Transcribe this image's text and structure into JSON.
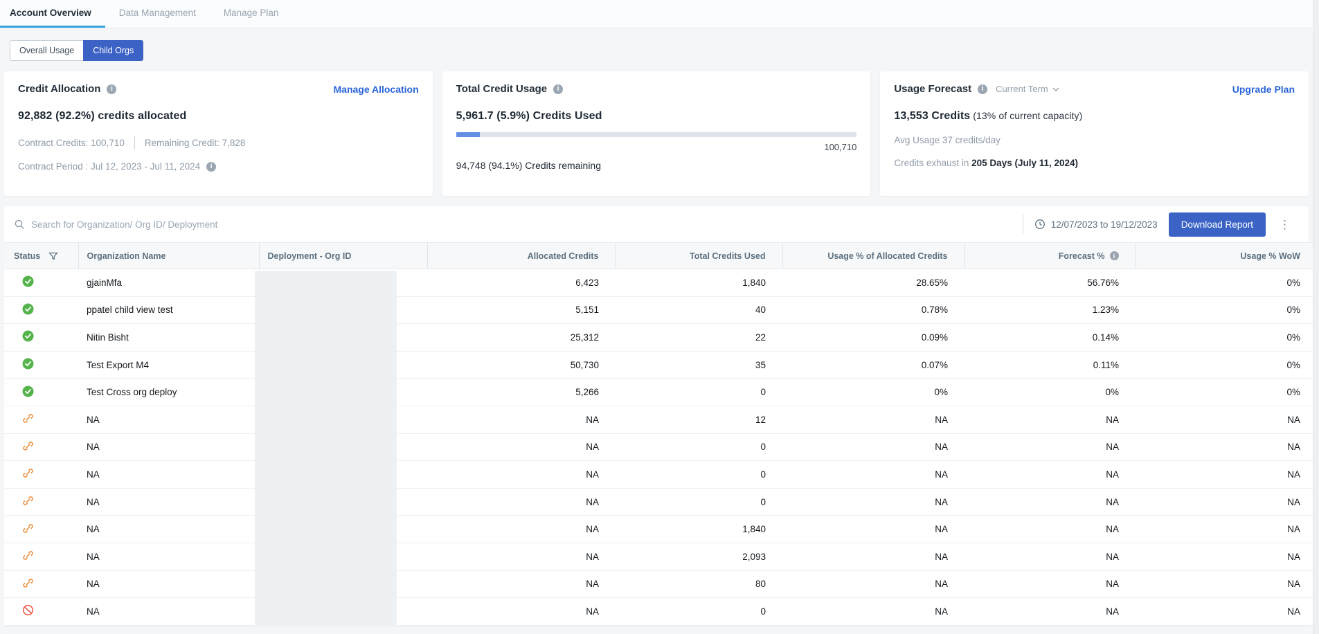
{
  "tabs": [
    {
      "label": "Account Overview",
      "active": true
    },
    {
      "label": "Data Management",
      "active": false
    },
    {
      "label": "Manage Plan",
      "active": false
    }
  ],
  "view_toggle": {
    "options": [
      {
        "label": "Overall Usage",
        "selected": false
      },
      {
        "label": "Child Orgs",
        "selected": true
      }
    ]
  },
  "cards": {
    "credit_allocation": {
      "title": "Credit Allocation",
      "action": "Manage Allocation",
      "headline": "92,882 (92.2%) credits allocated",
      "contract_credits": "Contract Credits: 100,710",
      "remaining_credit": "Remaining Credit: 7,828",
      "contract_period": "Contract Period : Jul 12, 2023 - Jul 11, 2024"
    },
    "total_credit_usage": {
      "title": "Total Credit Usage",
      "headline": "5,961.7 (5.9%) Credits Used",
      "progress_percent": 5.9,
      "bar_total": "100,710",
      "remaining": "94,748 (94.1%) Credits remaining"
    },
    "usage_forecast": {
      "title": "Usage Forecast",
      "term_selector": "Current Term",
      "action": "Upgrade Plan",
      "headline_bold": "13,553 Credits",
      "headline_rest": " (13% of current capacity)",
      "avg_usage": "Avg Usage 37 credits/day",
      "exhaust_prefix": "Credits exhaust in ",
      "exhaust_bold": "205 Days (July 11, 2024)"
    }
  },
  "toolbar": {
    "search_placeholder": "Search for Organization/ Org ID/ Deployment",
    "date_range": "12/07/2023 to 19/12/2023",
    "download_label": "Download Report"
  },
  "table": {
    "columns": [
      "Status",
      "Organization Name",
      "Deployment - Org ID",
      "Allocated Credits",
      "Total Credits Used",
      "Usage % of Allocated Credits",
      "Forecast %",
      "Usage % WoW"
    ],
    "deployment_redacted": true,
    "rows": [
      {
        "status": "active",
        "org": "gjainMfa",
        "deployment": "",
        "allocated": "6,423",
        "used": "1,840",
        "usage_pct": "28.65%",
        "forecast_pct": "56.76%",
        "wow": "0%"
      },
      {
        "status": "active",
        "org": "ppatel child view test",
        "deployment": "",
        "allocated": "5,151",
        "used": "40",
        "usage_pct": "0.78%",
        "forecast_pct": "1.23%",
        "wow": "0%"
      },
      {
        "status": "active",
        "org": "Nitin Bisht",
        "deployment": "",
        "allocated": "25,312",
        "used": "22",
        "usage_pct": "0.09%",
        "forecast_pct": "0.14%",
        "wow": "0%"
      },
      {
        "status": "active",
        "org": "Test Export M4",
        "deployment": "",
        "allocated": "50,730",
        "used": "35",
        "usage_pct": "0.07%",
        "forecast_pct": "0.11%",
        "wow": "0%"
      },
      {
        "status": "active",
        "org": "Test Cross org deploy",
        "deployment": "",
        "allocated": "5,266",
        "used": "0",
        "usage_pct": "0%",
        "forecast_pct": "0%",
        "wow": "0%"
      },
      {
        "status": "unlinked",
        "org": "NA",
        "deployment": "",
        "allocated": "NA",
        "used": "12",
        "usage_pct": "NA",
        "forecast_pct": "NA",
        "wow": "NA"
      },
      {
        "status": "unlinked",
        "org": "NA",
        "deployment": "",
        "allocated": "NA",
        "used": "0",
        "usage_pct": "NA",
        "forecast_pct": "NA",
        "wow": "NA"
      },
      {
        "status": "unlinked",
        "org": "NA",
        "deployment": "",
        "allocated": "NA",
        "used": "0",
        "usage_pct": "NA",
        "forecast_pct": "NA",
        "wow": "NA"
      },
      {
        "status": "unlinked",
        "org": "NA",
        "deployment": "",
        "allocated": "NA",
        "used": "0",
        "usage_pct": "NA",
        "forecast_pct": "NA",
        "wow": "NA"
      },
      {
        "status": "unlinked",
        "org": "NA",
        "deployment": "",
        "allocated": "NA",
        "used": "1,840",
        "usage_pct": "NA",
        "forecast_pct": "NA",
        "wow": "NA"
      },
      {
        "status": "unlinked",
        "org": "NA",
        "deployment": "",
        "allocated": "NA",
        "used": "2,093",
        "usage_pct": "NA",
        "forecast_pct": "NA",
        "wow": "NA"
      },
      {
        "status": "unlinked",
        "org": "NA",
        "deployment": "",
        "allocated": "NA",
        "used": "80",
        "usage_pct": "NA",
        "forecast_pct": "NA",
        "wow": "NA"
      },
      {
        "status": "blocked",
        "org": "NA",
        "deployment": "",
        "allocated": "NA",
        "used": "0",
        "usage_pct": "NA",
        "forecast_pct": "NA",
        "wow": "NA"
      }
    ]
  },
  "colors": {
    "accent_blue": "#3b63c6",
    "link_blue": "#2a65d9",
    "tab_underline": "#38a1e5",
    "success_green": "#55b34b",
    "warning_orange": "#ee9040",
    "error_red": "#f05b49",
    "redaction_gray": "#eef1f3"
  }
}
